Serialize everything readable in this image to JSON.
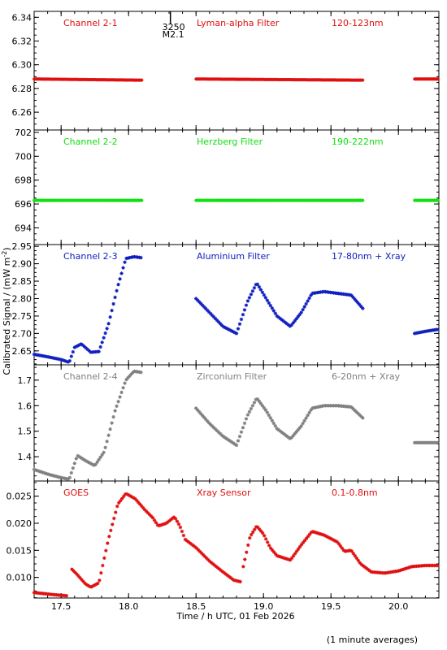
{
  "xlabel": "Time / h UTC, 01 Feb 2026",
  "ylabel": "Calibrated Signal / (mW m",
  "ylabel_sup": "-2",
  "ylabel_close": ")",
  "footer_note": "(1 minute averages)",
  "flare_marker": {
    "time_label": "3250",
    "class_label": "M2.1",
    "x": 18.31
  },
  "chart_data": [
    {
      "type": "scatter",
      "labels": [
        "Channel 2-1",
        "Lyman-alpha Filter",
        "120-123nm"
      ],
      "color": "#e01010",
      "xlim": [
        17.3,
        20.3
      ],
      "ylim": [
        6.245,
        6.345
      ],
      "yticks": [
        6.26,
        6.28,
        6.3,
        6.32,
        6.34
      ],
      "ytick_labels": [
        "6.26",
        "6.28",
        "6.30",
        "6.32",
        "6.34"
      ],
      "series": [
        {
          "segments": [
            {
              "x": [
                17.3,
                18.1
              ],
              "y": [
                6.288,
                6.287
              ]
            },
            {
              "x": [
                18.5,
                19.74
              ],
              "y": [
                6.288,
                6.287
              ]
            },
            {
              "x": [
                20.12,
                20.3
              ],
              "y": [
                6.288,
                6.288
              ]
            }
          ]
        }
      ]
    },
    {
      "type": "scatter",
      "labels": [
        "Channel 2-2",
        "Herzberg Filter",
        "190-222nm"
      ],
      "color": "#10e010",
      "xlim": [
        17.3,
        20.3
      ],
      "ylim": [
        692.6,
        702.2
      ],
      "yticks": [
        694,
        696,
        698,
        700,
        702
      ],
      "ytick_labels": [
        "694",
        "696",
        "698",
        "700",
        "702"
      ],
      "series": [
        {
          "segments": [
            {
              "x": [
                17.3,
                18.1
              ],
              "y": [
                696.3,
                696.3
              ]
            },
            {
              "x": [
                18.5,
                19.74
              ],
              "y": [
                696.3,
                696.3
              ]
            },
            {
              "x": [
                20.12,
                20.3
              ],
              "y": [
                696.3,
                696.3
              ]
            }
          ]
        }
      ]
    },
    {
      "type": "scatter",
      "labels": [
        "Channel 2-3",
        "Aluminium Filter",
        "17-80nm + Xray"
      ],
      "color": "#1020c0",
      "xlim": [
        17.3,
        20.3
      ],
      "ylim": [
        2.61,
        2.955
      ],
      "yticks": [
        2.65,
        2.7,
        2.75,
        2.8,
        2.85,
        2.9,
        2.95
      ],
      "ytick_labels": [
        "2.65",
        "2.70",
        "2.75",
        "2.80",
        "2.85",
        "2.90",
        "2.95"
      ],
      "series": [
        {
          "segments": [
            {
              "x": [
                17.3,
                17.4,
                17.5,
                17.56,
                17.6,
                17.65,
                17.72,
                17.78,
                17.85,
                17.92,
                17.98,
                18.04,
                18.1
              ],
              "y": [
                2.64,
                2.633,
                2.625,
                2.617,
                2.66,
                2.67,
                2.646,
                2.648,
                2.725,
                2.835,
                2.915,
                2.92,
                2.917
              ]
            },
            {
              "x": [
                18.5,
                18.6,
                18.7,
                18.8,
                18.88,
                18.95,
                19.02,
                19.1,
                19.2,
                19.28,
                19.36,
                19.45,
                19.55,
                19.65,
                19.74
              ],
              "y": [
                2.8,
                2.76,
                2.72,
                2.7,
                2.79,
                2.845,
                2.8,
                2.75,
                2.72,
                2.76,
                2.815,
                2.82,
                2.815,
                2.81,
                2.77
              ]
            },
            {
              "x": [
                20.12,
                20.2,
                20.3
              ],
              "y": [
                2.7,
                2.706,
                2.712
              ]
            }
          ]
        }
      ]
    },
    {
      "type": "scatter",
      "labels": [
        "Channel 2-4",
        "Zirconium Filter",
        "6-20nm + Xray"
      ],
      "color": "#808080",
      "xlim": [
        17.3,
        20.3
      ],
      "ylim": [
        1.305,
        1.76
      ],
      "yticks": [
        1.4,
        1.5,
        1.6,
        1.7
      ],
      "ytick_labels": [
        "1.4",
        "1.5",
        "1.6",
        "1.7"
      ],
      "series": [
        {
          "segments": [
            {
              "x": [
                17.3,
                17.4,
                17.5,
                17.56,
                17.62,
                17.68,
                17.75,
                17.82,
                17.9,
                17.98,
                18.04,
                18.1
              ],
              "y": [
                1.35,
                1.332,
                1.318,
                1.312,
                1.405,
                1.385,
                1.365,
                1.42,
                1.58,
                1.7,
                1.735,
                1.73
              ]
            },
            {
              "x": [
                18.5,
                18.6,
                18.7,
                18.8,
                18.88,
                18.95,
                19.02,
                19.1,
                19.2,
                19.28,
                19.36,
                19.45,
                19.55,
                19.65,
                19.74
              ],
              "y": [
                1.59,
                1.53,
                1.48,
                1.445,
                1.56,
                1.63,
                1.58,
                1.51,
                1.47,
                1.52,
                1.59,
                1.6,
                1.6,
                1.595,
                1.55
              ]
            },
            {
              "x": [
                20.12,
                20.2,
                20.3
              ],
              "y": [
                1.455,
                1.455,
                1.455
              ]
            }
          ]
        }
      ]
    },
    {
      "type": "scatter",
      "labels": [
        "GOES",
        "Xray Sensor",
        "0.1-0.8nm"
      ],
      "color": "#e01010",
      "xlim": [
        17.3,
        20.3
      ],
      "ylim": [
        0.0062,
        0.0278
      ],
      "yticks": [
        0.01,
        0.015,
        0.02,
        0.025
      ],
      "ytick_labels": [
        "0.010",
        "0.015",
        "0.020",
        "0.025"
      ],
      "series": [
        {
          "segments": [
            {
              "x": [
                17.3,
                17.45,
                17.55
              ],
              "y": [
                0.0072,
                0.0068,
                0.0066
              ]
            },
            {
              "x": [
                17.58,
                17.62,
                17.68,
                17.72,
                17.78,
                17.85,
                17.92,
                17.98,
                18.05,
                18.12,
                18.18,
                18.22,
                18.28,
                18.34,
                18.38,
                18.42,
                18.5,
                18.6,
                18.7,
                18.78,
                18.83
              ],
              "y": [
                0.0115,
                0.0105,
                0.0088,
                0.0082,
                0.009,
                0.017,
                0.0235,
                0.0255,
                0.0245,
                0.0225,
                0.021,
                0.0195,
                0.02,
                0.0212,
                0.0195,
                0.017,
                0.0155,
                0.013,
                0.011,
                0.0095,
                0.0092
              ]
            },
            {
              "x": [
                18.85,
                18.9,
                18.95,
                19.0,
                19.05,
                19.1,
                19.2,
                19.28,
                19.36,
                19.45,
                19.55,
                19.6,
                19.65,
                19.72,
                19.8,
                19.9,
                20.0,
                20.1,
                20.2,
                20.3
              ],
              "y": [
                0.012,
                0.0175,
                0.0195,
                0.018,
                0.0155,
                0.014,
                0.0132,
                0.016,
                0.0185,
                0.0178,
                0.0165,
                0.0148,
                0.015,
                0.0125,
                0.011,
                0.0108,
                0.0112,
                0.012,
                0.0122,
                0.0122
              ]
            }
          ]
        }
      ]
    }
  ],
  "xticks": [
    17.5,
    18.0,
    18.5,
    19.0,
    19.5,
    20.0
  ],
  "xtick_labels": [
    "17.5",
    "18.0",
    "18.5",
    "19.0",
    "19.5",
    "20.0"
  ]
}
